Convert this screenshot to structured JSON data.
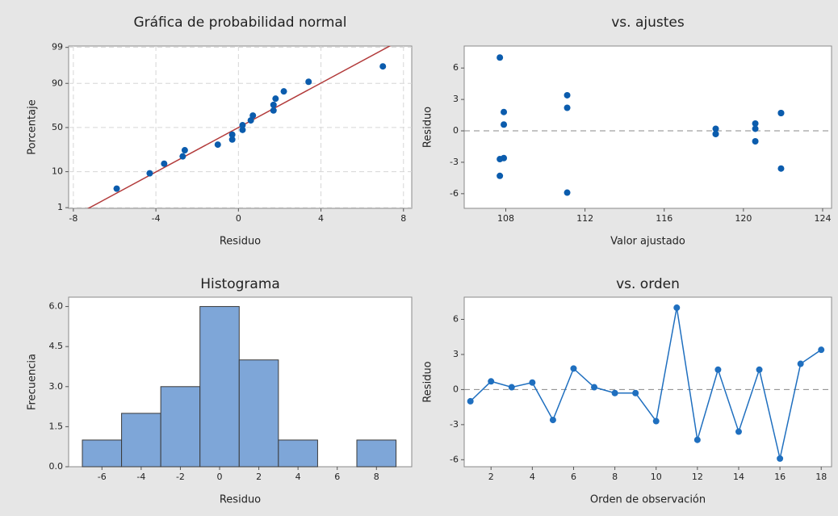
{
  "chart_data": [
    {
      "type": "probability",
      "title": "Gráfica de probabilidad normal",
      "xlabel": "Residuo",
      "ylabel": "Porcentaje",
      "x": [
        -5.9,
        -4.3,
        -3.6,
        -2.7,
        -2.6,
        -1.0,
        -0.3,
        -0.3,
        0.2,
        0.2,
        0.6,
        0.7,
        1.7,
        1.7,
        1.8,
        2.2,
        3.4,
        7.0
      ],
      "values": [
        3.8,
        9.2,
        14.7,
        20.1,
        25.5,
        31.0,
        36.4,
        41.8,
        47.3,
        52.7,
        58.2,
        63.6,
        69.0,
        74.5,
        79.9,
        85.3,
        90.8,
        96.2
      ],
      "color": "#0b5cad",
      "reference_line": {
        "mean": 0,
        "stdev": 3.1,
        "color": "#b23a3a"
      },
      "xlim": [
        -8.23,
        8.4
      ],
      "xticks": [
        -8,
        -4,
        0,
        4,
        8
      ],
      "ylim": [
        0.95,
        99.1
      ],
      "yticks": [
        1,
        10,
        50,
        90,
        99
      ],
      "grid": true
    },
    {
      "type": "scatter",
      "title": "vs. ajustes",
      "xlabel": "Valor ajustado",
      "ylabel": "Residuo",
      "x": [
        120.6,
        120.6,
        120.6,
        107.9,
        107.9,
        107.9,
        118.6,
        118.6,
        118.6,
        107.7,
        107.7,
        107.7,
        121.9,
        121.9,
        121.9,
        111.1,
        111.1,
        111.1
      ],
      "values": [
        -1.0,
        0.7,
        0.2,
        0.6,
        -2.6,
        1.8,
        0.2,
        -0.3,
        -0.3,
        -2.7,
        7.0,
        -4.3,
        1.7,
        -3.6,
        1.7,
        -5.9,
        2.2,
        3.4
      ],
      "color": "#0b5cad",
      "hline": 0,
      "xlim": [
        105.9,
        124.45
      ],
      "xticks": [
        108,
        112,
        116,
        120,
        124
      ],
      "ylim": [
        -7.4,
        8.1
      ],
      "yticks": [
        -6,
        -3,
        0,
        3,
        6
      ],
      "grid": false
    },
    {
      "type": "histogram",
      "title": "Histograma",
      "xlabel": "Residuo",
      "ylabel": "Frecuencia",
      "bins": [
        -7,
        -5,
        -3,
        -1,
        1,
        3,
        5,
        7,
        9
      ],
      "values": [
        1,
        2,
        3,
        6,
        4,
        1,
        0,
        1
      ],
      "color": "#7ea6d8",
      "xlim": [
        -7.7,
        9.8
      ],
      "xticks": [
        -6,
        -4,
        -2,
        0,
        2,
        4,
        6,
        8
      ],
      "ylim": [
        0,
        6.35
      ],
      "yticks": [
        {
          "value": 0,
          "label": "0.0"
        },
        1.5,
        {
          "value": 3,
          "label": "3.0"
        },
        4.5,
        {
          "value": 6,
          "label": "6.0"
        }
      ],
      "grid": false
    },
    {
      "type": "line",
      "title": "vs. orden",
      "xlabel": "Orden de observación",
      "ylabel": "Residuo",
      "x": [
        1,
        2,
        3,
        4,
        5,
        6,
        7,
        8,
        9,
        10,
        11,
        12,
        13,
        14,
        15,
        16,
        17,
        18
      ],
      "values": [
        -1.0,
        0.7,
        0.2,
        0.6,
        -2.6,
        1.8,
        0.2,
        -0.3,
        -0.3,
        -2.7,
        7.0,
        -4.3,
        1.7,
        -3.6,
        1.7,
        -5.9,
        2.2,
        3.4
      ],
      "color": "#1f6fbf",
      "hline": 0,
      "xlim": [
        0.7,
        18.5
      ],
      "xticks": [
        2,
        4,
        6,
        8,
        10,
        12,
        14,
        16,
        18
      ],
      "ylim": [
        -6.6,
        7.9
      ],
      "yticks": [
        -6,
        -3,
        0,
        3,
        6
      ],
      "grid": false
    }
  ]
}
